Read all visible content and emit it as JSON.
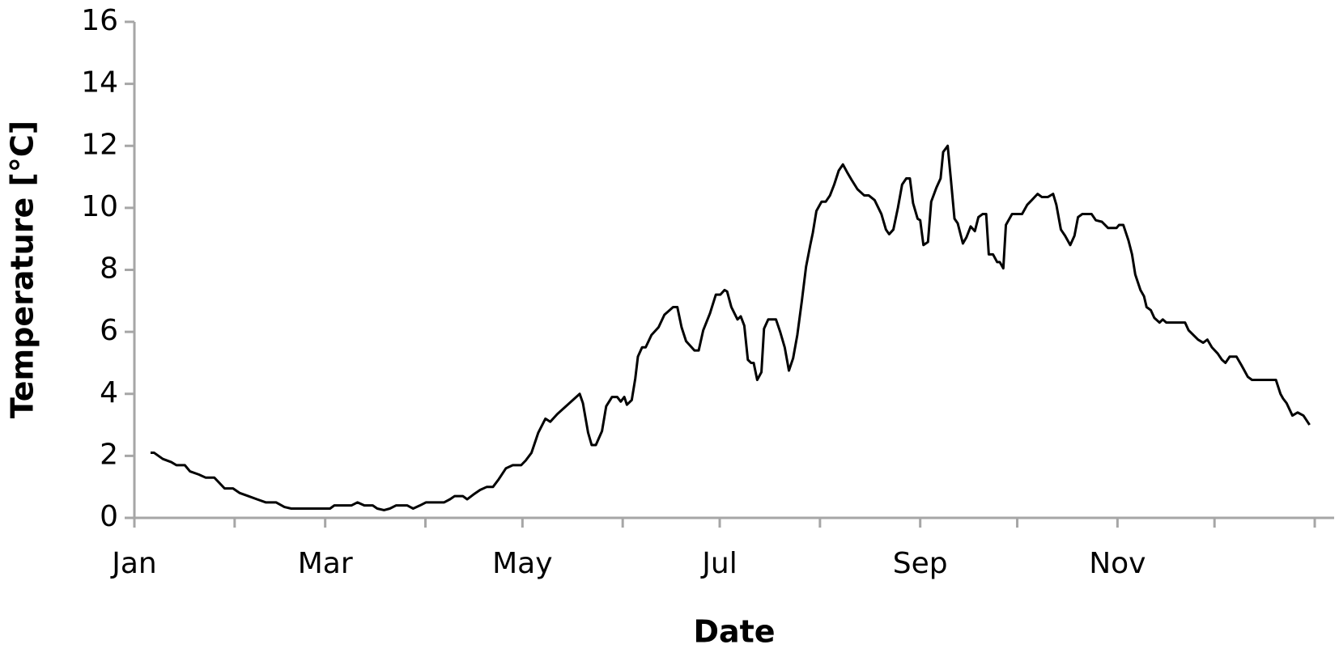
{
  "chart_data": {
    "type": "line",
    "x_label": "Date",
    "y_label": "Temperature [°C]",
    "x": [
      5.0,
      6.1,
      8.8,
      11.4,
      13.0,
      15.6,
      17.2,
      19.9,
      22.0,
      24.7,
      27.9,
      30.5,
      32.6,
      35.3,
      37.9,
      40.6,
      43.8,
      46.4,
      48.5,
      60.5,
      61.8,
      67.1,
      69.0,
      71.1,
      73.7,
      75.1,
      77.2,
      79.0,
      80.9,
      84.4,
      86.2,
      88.3,
      90.2,
      95.8,
      97.6,
      99.0,
      101.6,
      102.9,
      104.8,
      106.9,
      109.0,
      110.9,
      112.7,
      114.9,
      117.0,
      119.6,
      121.0,
      122.8,
      124.9,
      127.1,
      128.6,
      130.8,
      137.7,
      138.7,
      140.3,
      141.4,
      142.7,
      144.6,
      145.9,
      147.7,
      149.3,
      150.4,
      151.5,
      152.3,
      153.8,
      154.9,
      155.7,
      157.0,
      158.1,
      159.9,
      162.1,
      163.9,
      166.6,
      167.9,
      169.2,
      170.6,
      173.2,
      174.5,
      175.9,
      178.0,
      179.8,
      181.2,
      182.5,
      183.3,
      184.6,
      186.5,
      187.5,
      188.6,
      189.7,
      190.7,
      191.5,
      192.6,
      193.9,
      194.7,
      196.0,
      198.4,
      199.7,
      201.1,
      202.4,
      203.7,
      205.0,
      206.4,
      207.7,
      209.0,
      209.8,
      210.9,
      212.5,
      213.8,
      215.1,
      216.4,
      217.8,
      219.1,
      220.4,
      221.8,
      223.6,
      225.7,
      227.1,
      228.9,
      231.0,
      232.4,
      233.4,
      234.7,
      236.1,
      237.4,
      238.7,
      239.8,
      240.8,
      242.2,
      243.0,
      244.0,
      245.4,
      246.4,
      248.0,
      249.3,
      250.1,
      251.5,
      252.5,
      253.6,
      254.6,
      256.2,
      257.3,
      258.6,
      259.9,
      261.0,
      262.3,
      263.4,
      264.2,
      265.5,
      266.8,
      267.6,
      268.7,
      269.5,
      271.4,
      274.5,
      276.1,
      277.5,
      279.3,
      280.6,
      282.5,
      284.1,
      285.1,
      286.5,
      287.8,
      289.4,
      290.7,
      291.8,
      293.1,
      296.0,
      297.3,
      299.2,
      301.1,
      303.7,
      304.5,
      305.8,
      307.4,
      308.5,
      309.5,
      311.1,
      312.2,
      313.0,
      314.3,
      315.4,
      317.0,
      318.0,
      319.1,
      324.9,
      326.0,
      328.9,
      330.5,
      331.8,
      333.2,
      335.0,
      336.3,
      337.4,
      338.7,
      340.8,
      342.2,
      343.0,
      344.3,
      345.6,
      353.0,
      354.4,
      355.2,
      356.3,
      358.1,
      359.7,
      361.5,
      363.4
    ],
    "values": [
      2.1,
      2.1,
      1.9,
      1.8,
      1.7,
      1.7,
      1.5,
      1.4,
      1.3,
      1.3,
      0.95,
      0.95,
      0.8,
      0.7,
      0.6,
      0.5,
      0.5,
      0.35,
      0.3,
      0.3,
      0.4,
      0.4,
      0.5,
      0.4,
      0.4,
      0.3,
      0.25,
      0.3,
      0.4,
      0.4,
      0.3,
      0.4,
      0.5,
      0.5,
      0.6,
      0.7,
      0.7,
      0.6,
      0.75,
      0.9,
      1.0,
      1.0,
      1.25,
      1.6,
      1.7,
      1.7,
      1.85,
      2.1,
      2.75,
      3.2,
      3.1,
      3.35,
      4.0,
      3.7,
      2.75,
      2.35,
      2.35,
      2.8,
      3.6,
      3.9,
      3.9,
      3.75,
      3.9,
      3.65,
      3.8,
      4.5,
      5.2,
      5.5,
      5.5,
      5.9,
      6.15,
      6.55,
      6.8,
      6.8,
      6.15,
      5.7,
      5.4,
      5.4,
      6.05,
      6.6,
      7.2,
      7.2,
      7.35,
      7.3,
      6.8,
      6.4,
      6.5,
      6.2,
      5.1,
      5.0,
      5.0,
      4.45,
      4.7,
      6.1,
      6.4,
      6.4,
      6.0,
      5.5,
      4.75,
      5.15,
      5.9,
      7.0,
      8.1,
      8.8,
      9.2,
      9.9,
      10.2,
      10.2,
      10.4,
      10.75,
      11.2,
      11.4,
      11.15,
      10.9,
      10.6,
      10.4,
      10.4,
      10.25,
      9.8,
      9.3,
      9.15,
      9.3,
      10.0,
      10.75,
      10.95,
      10.95,
      10.15,
      9.65,
      9.6,
      8.8,
      8.9,
      10.2,
      10.65,
      10.95,
      11.8,
      12.0,
      10.9,
      9.65,
      9.5,
      8.85,
      9.05,
      9.4,
      9.25,
      9.7,
      9.8,
      9.8,
      8.5,
      8.5,
      8.25,
      8.25,
      8.05,
      9.45,
      9.8,
      9.8,
      10.1,
      10.25,
      10.45,
      10.35,
      10.35,
      10.45,
      10.1,
      9.3,
      9.1,
      8.8,
      9.1,
      9.7,
      9.8,
      9.8,
      9.6,
      9.55,
      9.35,
      9.35,
      9.45,
      9.45,
      8.95,
      8.5,
      7.85,
      7.35,
      7.15,
      6.8,
      6.7,
      6.45,
      6.3,
      6.4,
      6.3,
      6.3,
      6.05,
      5.75,
      5.65,
      5.75,
      5.5,
      5.3,
      5.1,
      5.0,
      5.2,
      5.2,
      4.95,
      4.8,
      4.55,
      4.45,
      4.45,
      4.0,
      3.85,
      3.7,
      3.3,
      3.4,
      3.3,
      3.0
    ],
    "color": "#000000",
    "xlim": [
      0,
      371
    ],
    "xticks": [
      {
        "value": 0,
        "label": "Jan"
      },
      {
        "value": 31,
        "label": null
      },
      {
        "value": 59,
        "label": "Mar"
      },
      {
        "value": 90,
        "label": null
      },
      {
        "value": 120,
        "label": "May"
      },
      {
        "value": 151,
        "label": null
      },
      {
        "value": 181,
        "label": "Jul"
      },
      {
        "value": 212,
        "label": null
      },
      {
        "value": 243,
        "label": "Sep"
      },
      {
        "value": 273,
        "label": null
      },
      {
        "value": 304,
        "label": "Nov"
      },
      {
        "value": 334,
        "label": null
      },
      {
        "value": 365,
        "label": null
      }
    ],
    "ylim": [
      0,
      16
    ],
    "yticks": [
      0,
      2,
      4,
      6,
      8,
      10,
      12,
      14,
      16
    ],
    "grid": false
  }
}
